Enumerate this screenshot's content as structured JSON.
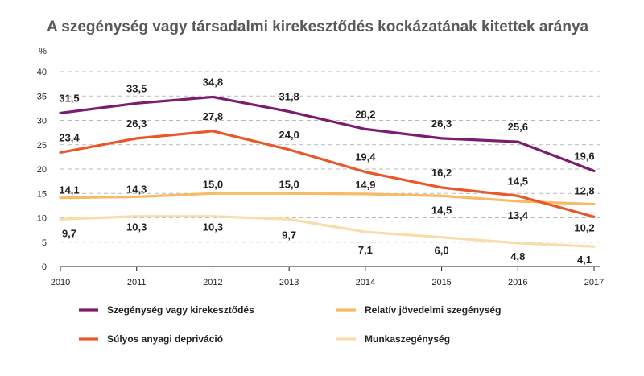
{
  "chart_data": {
    "type": "line",
    "title": "A szegénység vagy társadalmi kirekesztődés kockázatának kitettek aránya",
    "ylabel": "%",
    "xlabel": "",
    "x": [
      "2010",
      "2011",
      "2012",
      "2013",
      "2014",
      "2015",
      "2016",
      "2017"
    ],
    "ylim": [
      0,
      40
    ],
    "yticks": [
      "0",
      "5",
      "10",
      "15",
      "20",
      "25",
      "30",
      "35",
      "40"
    ],
    "grid": "horizontal dashed",
    "legend_position": "bottom",
    "series": [
      {
        "name": "Szegénység vagy kirekesztődés",
        "color": "#7b1c6e",
        "values": [
          31.5,
          33.5,
          34.8,
          31.8,
          28.2,
          26.3,
          25.6,
          19.6
        ],
        "labels": [
          "31,5",
          "33,5",
          "34,8",
          "31,8",
          "28,2",
          "26,3",
          "25,6",
          "19,6"
        ]
      },
      {
        "name": "Súlyos anyagi depriváció",
        "color": "#e8582a",
        "values": [
          23.4,
          26.3,
          27.8,
          24.0,
          19.4,
          16.2,
          14.5,
          10.2
        ],
        "labels": [
          "23,4",
          "26,3",
          "27,8",
          "24,0",
          "19,4",
          "16,2",
          "14,5",
          "10,2"
        ]
      },
      {
        "name": "Relatív jövedelmi szegénység",
        "color": "#f6bb64",
        "values": [
          14.1,
          14.3,
          15.0,
          15.0,
          14.9,
          14.5,
          13.4,
          12.8
        ],
        "labels": [
          "14,1",
          "14,3",
          "15,0",
          "15,0",
          "14,9",
          "14,5",
          "13,4",
          "12,8"
        ]
      },
      {
        "name": "Munkaszegénység",
        "color": "#f8dcaa",
        "values": [
          9.7,
          10.3,
          10.3,
          9.7,
          7.1,
          6.0,
          4.8,
          4.1
        ],
        "labels": [
          "9,7",
          "10,3",
          "10,3",
          "9,7",
          "7,1",
          "6,0",
          "4,8",
          "4,1"
        ]
      }
    ]
  }
}
